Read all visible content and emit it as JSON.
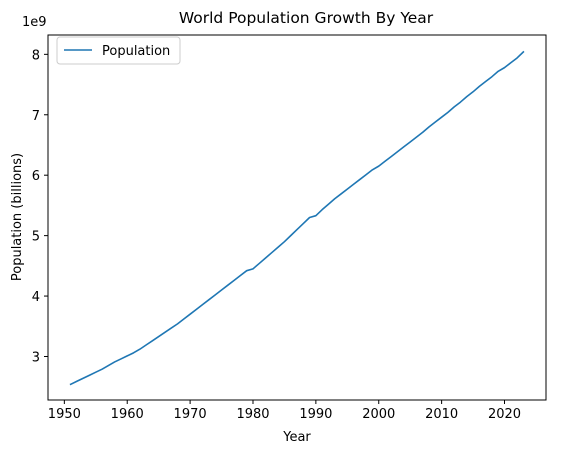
{
  "chart_data": {
    "type": "line",
    "title": "World Population Growth By Year",
    "xlabel": "Year",
    "ylabel": "Population (billions)",
    "y_offset_label": "1e9",
    "y_scale_factor": 1000000000,
    "xlim": [
      1947.4,
      2026.6
    ],
    "ylim": [
      2.28,
      8.32
    ],
    "x_ticks": [
      1950,
      1960,
      1970,
      1980,
      1990,
      2000,
      2010,
      2020
    ],
    "y_ticks": [
      3,
      4,
      5,
      6,
      7,
      8
    ],
    "grid": false,
    "legend_position": "top-left",
    "series": [
      {
        "name": "Population",
        "color": "#1f77b4",
        "x": [
          1951,
          1952,
          1953,
          1954,
          1955,
          1956,
          1957,
          1958,
          1959,
          1960,
          1961,
          1962,
          1963,
          1964,
          1965,
          1966,
          1967,
          1968,
          1969,
          1970,
          1971,
          1972,
          1973,
          1974,
          1975,
          1976,
          1977,
          1978,
          1979,
          1980,
          1981,
          1982,
          1983,
          1984,
          1985,
          1986,
          1987,
          1988,
          1989,
          1990,
          1991,
          1992,
          1993,
          1994,
          1995,
          1996,
          1997,
          1998,
          1999,
          2000,
          2001,
          2002,
          2003,
          2004,
          2005,
          2006,
          2007,
          2008,
          2009,
          2010,
          2011,
          2012,
          2013,
          2014,
          2015,
          2016,
          2017,
          2018,
          2019,
          2020,
          2021,
          2022,
          2023
        ],
        "y": [
          2.54,
          2.59,
          2.64,
          2.69,
          2.74,
          2.79,
          2.85,
          2.91,
          2.96,
          3.01,
          3.06,
          3.12,
          3.19,
          3.26,
          3.33,
          3.4,
          3.47,
          3.54,
          3.62,
          3.7,
          3.78,
          3.86,
          3.94,
          4.02,
          4.1,
          4.18,
          4.26,
          4.34,
          4.42,
          4.45,
          4.54,
          4.63,
          4.72,
          4.81,
          4.9,
          5.0,
          5.1,
          5.2,
          5.3,
          5.33,
          5.43,
          5.52,
          5.61,
          5.69,
          5.77,
          5.85,
          5.93,
          6.01,
          6.09,
          6.15,
          6.23,
          6.31,
          6.39,
          6.47,
          6.55,
          6.63,
          6.71,
          6.8,
          6.88,
          6.96,
          7.04,
          7.13,
          7.21,
          7.3,
          7.38,
          7.47,
          7.55,
          7.63,
          7.72,
          7.78,
          7.86,
          7.94,
          8.04
        ]
      }
    ]
  }
}
